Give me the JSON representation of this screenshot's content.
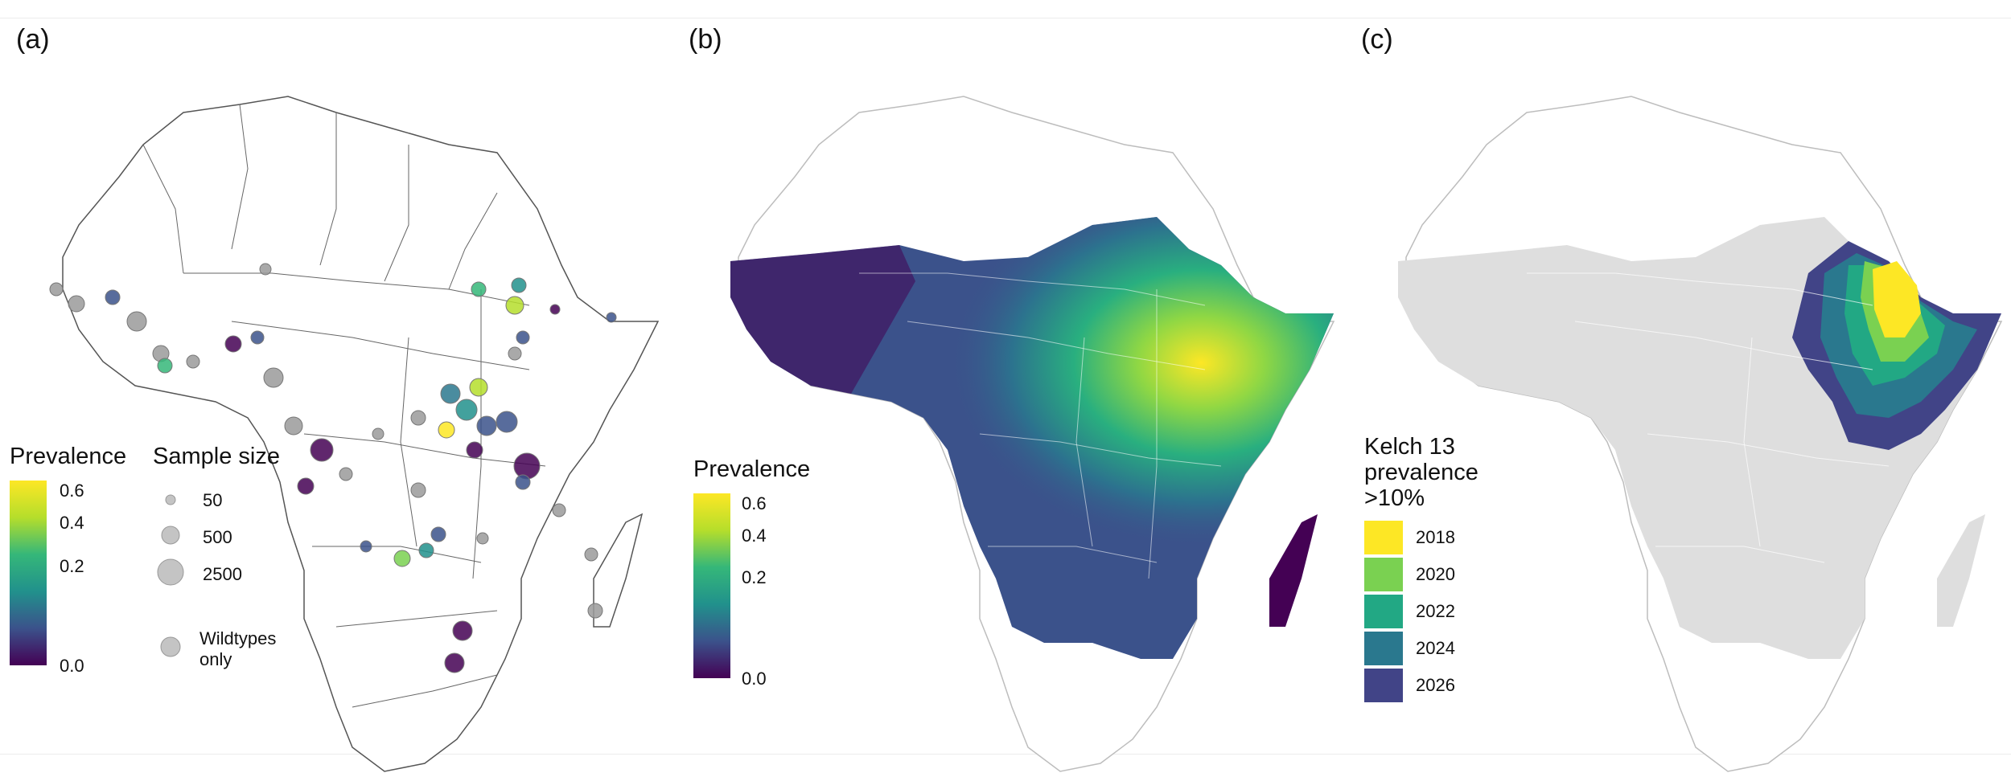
{
  "panels": [
    {
      "label": "(a)"
    },
    {
      "label": "(b)"
    },
    {
      "label": "(c)"
    }
  ],
  "legend_a": {
    "prevalence_title": "Prevalence",
    "prevalence_ticks": [
      "0.6",
      "0.4",
      "0.2",
      "0.0"
    ],
    "sample_title": "Sample size",
    "sizes": [
      "50",
      "500",
      "2500"
    ],
    "wildtypes_label_line1": "Wildtypes",
    "wildtypes_label_line2": "only"
  },
  "legend_b": {
    "title": "Prevalence",
    "ticks": [
      "0.6",
      "0.4",
      "0.2",
      "0.0"
    ]
  },
  "legend_c": {
    "title_line1": "Kelch 13",
    "title_line2": "prevalence",
    "title_line3": ">10%",
    "years": [
      "2018",
      "2020",
      "2022",
      "2024",
      "2026"
    ]
  },
  "colors": {
    "viridis_top": "#fde725",
    "viridis_mid": "#21918c",
    "viridis_low": "#3b528b",
    "viridis_bottom": "#440154",
    "year_2018": "#fde725",
    "year_2020": "#7ad151",
    "year_2022": "#22a884",
    "year_2024": "#2a788e",
    "year_2026": "#414487",
    "na_grey": "#dedede"
  }
}
